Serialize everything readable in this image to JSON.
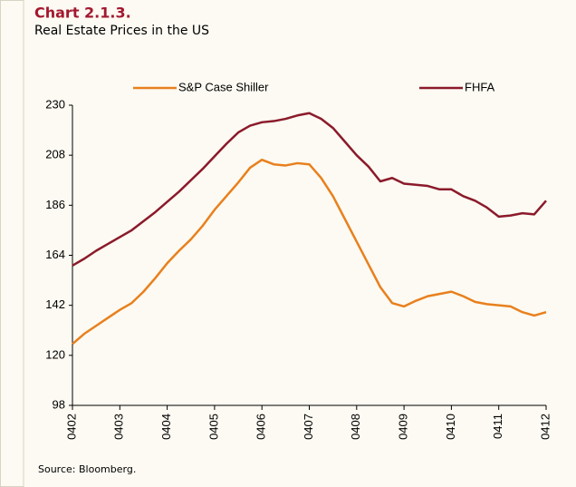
{
  "chart_data": {
    "type": "line",
    "title": "Chart 2.1.3.",
    "subtitle": "Real Estate Prices in the US",
    "source": "Source: Bloomberg.",
    "categories": [
      "0402",
      null,
      null,
      null,
      "0403",
      null,
      null,
      null,
      "0404",
      null,
      null,
      null,
      "0405",
      null,
      null,
      null,
      "0406",
      null,
      null,
      null,
      "0407",
      null,
      null,
      null,
      "0408",
      null,
      null,
      null,
      "0409",
      null,
      null,
      null,
      "0410",
      null,
      null,
      null,
      "0411",
      null,
      null,
      null,
      "0412"
    ],
    "series": [
      {
        "name": "S&P Case Shiller",
        "color": "#e8801e",
        "values": [
          125,
          129.5,
          133,
          136.5,
          140,
          143,
          148,
          154,
          160.5,
          166,
          171,
          177,
          184,
          190,
          196,
          202.5,
          206,
          204,
          203.5,
          204.5,
          204,
          198,
          190,
          180,
          170,
          160,
          150,
          143,
          141.5,
          144,
          146,
          147,
          148,
          146,
          143.5,
          142.5,
          142,
          141.5,
          139,
          137.5,
          139
        ]
      },
      {
        "name": "FHFA",
        "color": "#8b1a2b",
        "values": [
          159.5,
          162.5,
          166,
          169,
          172,
          175,
          179,
          183,
          187.5,
          192,
          197,
          202,
          207.5,
          213,
          218,
          221,
          222.5,
          223,
          224,
          225.5,
          226.5,
          224,
          220,
          214,
          208,
          203,
          196.5,
          198,
          195.5,
          195,
          194.5,
          193,
          193,
          190,
          188,
          185,
          181,
          181.5,
          182.5,
          182,
          188
        ]
      }
    ],
    "ylim": [
      98,
      230
    ],
    "yticks": [
      98,
      120,
      142,
      164,
      186,
      208,
      230
    ],
    "legend": "top"
  }
}
